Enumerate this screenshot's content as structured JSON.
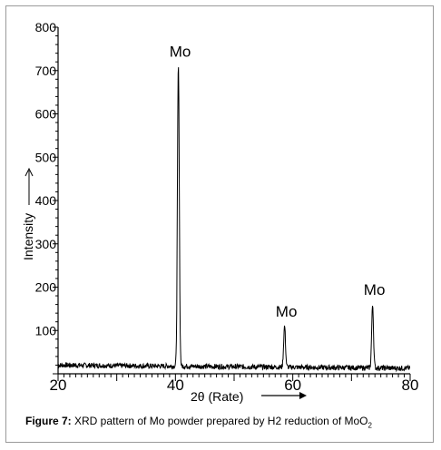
{
  "chart_data": {
    "type": "line",
    "title": "",
    "xlabel": "2θ (Rate)",
    "ylabel": "Intensity",
    "xlim": [
      20,
      80
    ],
    "ylim": [
      0,
      800
    ],
    "xticks": [
      "20",
      "40",
      "60",
      "80"
    ],
    "yticks": [
      "100",
      "200",
      "300",
      "400",
      "500",
      "600",
      "700",
      "800"
    ],
    "baseline": 20,
    "peaks": [
      {
        "x": 40.5,
        "y": 715,
        "label": "Mo"
      },
      {
        "x": 58.6,
        "y": 115,
        "label": "Mo"
      },
      {
        "x": 73.6,
        "y": 165,
        "label": "Mo"
      }
    ],
    "line_color": "#000000"
  },
  "caption": {
    "prefix": "Figure 7:",
    "text": "XRD pattern of Mo powder prepared by H2 reduction of MoO",
    "subscript": "2"
  }
}
